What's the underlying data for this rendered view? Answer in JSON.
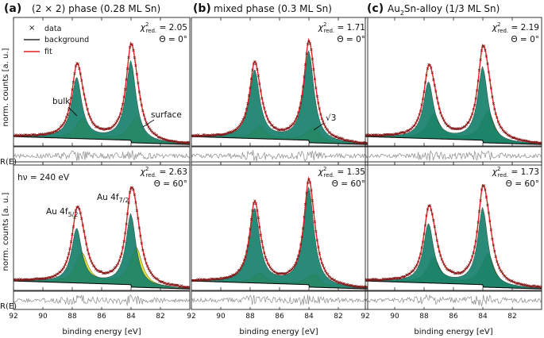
{
  "chart_data": {
    "type": "line",
    "xlabel": "binding energy [eV]",
    "ylabel_top": "norm. counts [a. u.]",
    "ylabel_residual": "R(E)",
    "xlim": [
      92,
      80
    ],
    "xticks": [
      92,
      90,
      88,
      86,
      84,
      82
    ],
    "x_reversed": true,
    "colors": {
      "data": "#7a1a1a",
      "background": "#000000",
      "fit": "#e02020",
      "bulk": "#17806b",
      "surface": "#dde23c",
      "alloy": "#63ad50",
      "residual": "#8a8a8a"
    },
    "legend": {
      "position": "top-left",
      "entries": [
        {
          "label": "data",
          "marker": "×"
        },
        {
          "label": "background"
        },
        {
          "label": "fit"
        }
      ]
    },
    "columns": [
      {
        "letter": "(a)",
        "title": "(2 × 2) phase (0.28 ML Sn)"
      },
      {
        "letter": "(b)",
        "title": "mixed phase (0.3 ML Sn)"
      },
      {
        "letter": "(c)",
        "title_pre": "Au",
        "title_sub": "2",
        "title_post": "Sn-alloy (1/3 ML Sn)"
      }
    ],
    "panels": [
      {
        "id": "a-top",
        "column": 0,
        "row": 0,
        "chi2_label": "χ",
        "chi2_sub": "red.",
        "chi2_value": " = 2.05",
        "theta": "Θ = 0°",
        "components": [
          "bulk",
          "surface"
        ],
        "surface_frac": 0.45,
        "peak": 0.86,
        "annotations": [
          "bulk",
          "surface"
        ]
      },
      {
        "id": "b-top",
        "column": 1,
        "row": 0,
        "chi2_label": "χ",
        "chi2_sub": "red.",
        "chi2_value": " = 1.71",
        "theta": "Θ = 0°",
        "components": [
          "bulk",
          "surface"
        ],
        "surface_frac": 0.28,
        "peak": 0.86,
        "annotations": [
          "√3"
        ]
      },
      {
        "id": "c-top",
        "column": 2,
        "row": 0,
        "chi2_label": "χ",
        "chi2_sub": "red.",
        "chi2_value": " = 2.19",
        "theta": "Θ = 0°",
        "components": [
          "bulk",
          "alloy"
        ],
        "surface_frac": 0.55,
        "peak": 0.86,
        "annotations": []
      },
      {
        "id": "a-bot",
        "column": 0,
        "row": 1,
        "chi2_label": "χ",
        "chi2_sub": "red.",
        "chi2_value": " = 2.63",
        "theta": "Θ = 60°",
        "components": [
          "bulk",
          "surface"
        ],
        "surface_frac": 0.65,
        "peak": 0.9,
        "annotations": [
          "hν = 240 eV",
          "Au 4f5/2",
          "Au 4f7/2"
        ]
      },
      {
        "id": "b-bot",
        "column": 1,
        "row": 1,
        "chi2_label": "χ",
        "chi2_sub": "red.",
        "chi2_value": " = 1.35",
        "theta": "Θ = 60°",
        "components": [
          "bulk",
          "surface"
        ],
        "surface_frac": 0.22,
        "peak": 0.9,
        "annotations": []
      },
      {
        "id": "c-bot",
        "column": 2,
        "row": 1,
        "chi2_label": "χ",
        "chi2_sub": "red.",
        "chi2_value": " = 1.73",
        "theta": "Θ = 60°",
        "components": [
          "bulk",
          "alloy"
        ],
        "surface_frac": 0.55,
        "peak": 0.9,
        "annotations": []
      }
    ],
    "peaks": {
      "Au 4f7/2": {
        "position": 84.0,
        "height": 1.0
      },
      "Au 4f5/2": {
        "position": 87.7,
        "height": 0.76
      }
    }
  },
  "text": {
    "bulk": "bulk",
    "surface": "surface",
    "sqrt3": "√3",
    "hv": "hν = 240 eV",
    "au52_main": "Au 4f",
    "au52_sub": "5/2",
    "au72_main": "Au 4f",
    "au72_sub": "7/2"
  }
}
